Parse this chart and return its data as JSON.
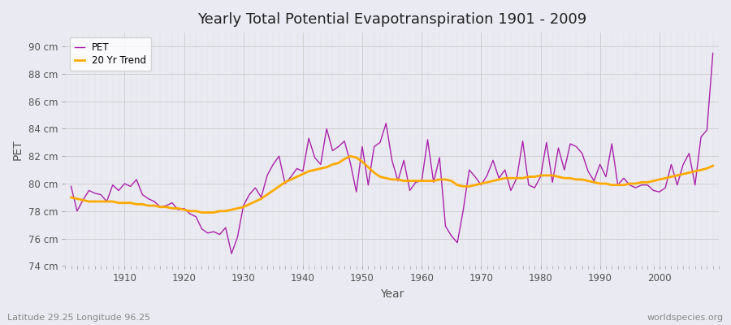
{
  "title": "Yearly Total Potential Evapotranspiration 1901 - 2009",
  "xlabel": "Year",
  "ylabel": "PET",
  "subtitle_left": "Latitude 29.25 Longitude 96.25",
  "subtitle_right": "worldspecies.org",
  "pet_color": "#aa22aa",
  "trend_color": "#ffaa00",
  "background_color": "#eaeaf2",
  "plot_bg_color": "#eaeaf2",
  "ylim": [
    74,
    91
  ],
  "yticks": [
    74,
    76,
    78,
    80,
    82,
    84,
    86,
    88,
    90
  ],
  "ytick_labels": [
    "74 cm",
    "76 cm",
    "78 cm",
    "80 cm",
    "82 cm",
    "84 cm",
    "86 cm",
    "88 cm",
    "90 cm"
  ],
  "years": [
    1901,
    1902,
    1903,
    1904,
    1905,
    1906,
    1907,
    1908,
    1909,
    1910,
    1911,
    1912,
    1913,
    1914,
    1915,
    1916,
    1917,
    1918,
    1919,
    1920,
    1921,
    1922,
    1923,
    1924,
    1925,
    1926,
    1927,
    1928,
    1929,
    1930,
    1931,
    1932,
    1933,
    1934,
    1935,
    1936,
    1937,
    1938,
    1939,
    1940,
    1941,
    1942,
    1943,
    1944,
    1945,
    1946,
    1947,
    1948,
    1949,
    1950,
    1951,
    1952,
    1953,
    1954,
    1955,
    1956,
    1957,
    1958,
    1959,
    1960,
    1961,
    1962,
    1963,
    1964,
    1965,
    1966,
    1967,
    1968,
    1969,
    1970,
    1971,
    1972,
    1973,
    1974,
    1975,
    1976,
    1977,
    1978,
    1979,
    1980,
    1981,
    1982,
    1983,
    1984,
    1985,
    1986,
    1987,
    1988,
    1989,
    1990,
    1991,
    1992,
    1993,
    1994,
    1995,
    1996,
    1997,
    1998,
    1999,
    2000,
    2001,
    2002,
    2003,
    2004,
    2005,
    2006,
    2007,
    2008,
    2009
  ],
  "pet_values": [
    79.8,
    78.0,
    78.8,
    79.5,
    79.3,
    79.2,
    78.7,
    79.9,
    79.5,
    80.0,
    79.8,
    80.3,
    79.2,
    78.9,
    78.7,
    78.3,
    78.4,
    78.6,
    78.1,
    78.2,
    77.8,
    77.6,
    76.7,
    76.4,
    76.5,
    76.3,
    76.8,
    74.9,
    76.1,
    78.4,
    79.2,
    79.7,
    79.0,
    80.6,
    81.4,
    82.0,
    80.0,
    80.5,
    81.1,
    80.9,
    83.3,
    81.9,
    81.4,
    84.0,
    82.4,
    82.7,
    83.1,
    81.5,
    79.4,
    82.7,
    79.9,
    82.7,
    83.0,
    84.4,
    81.7,
    80.2,
    81.7,
    79.5,
    80.1,
    80.2,
    83.2,
    80.1,
    81.9,
    76.9,
    76.2,
    75.7,
    78.1,
    81.0,
    80.5,
    79.9,
    80.6,
    81.7,
    80.4,
    81.0,
    79.5,
    80.4,
    83.1,
    79.9,
    79.7,
    80.5,
    83.0,
    80.1,
    82.6,
    81.0,
    82.9,
    82.7,
    82.2,
    80.9,
    80.2,
    81.4,
    80.5,
    82.9,
    79.9,
    80.4,
    79.9,
    79.7,
    79.9,
    79.9,
    79.5,
    79.4,
    79.7,
    81.4,
    79.9,
    81.4,
    82.2,
    79.9,
    83.4,
    83.9,
    89.5
  ],
  "trend_values": [
    79.0,
    78.9,
    78.8,
    78.7,
    78.7,
    78.7,
    78.7,
    78.7,
    78.6,
    78.6,
    78.6,
    78.5,
    78.5,
    78.4,
    78.4,
    78.3,
    78.3,
    78.2,
    78.2,
    78.1,
    78.0,
    78.0,
    77.9,
    77.9,
    77.9,
    78.0,
    78.0,
    78.1,
    78.2,
    78.3,
    78.5,
    78.7,
    78.9,
    79.2,
    79.5,
    79.8,
    80.1,
    80.3,
    80.5,
    80.7,
    80.9,
    81.0,
    81.1,
    81.2,
    81.4,
    81.5,
    81.8,
    82.0,
    81.9,
    81.6,
    81.2,
    80.8,
    80.5,
    80.4,
    80.3,
    80.3,
    80.2,
    80.2,
    80.2,
    80.2,
    80.2,
    80.2,
    80.3,
    80.3,
    80.2,
    79.9,
    79.8,
    79.8,
    79.9,
    80.0,
    80.1,
    80.2,
    80.3,
    80.4,
    80.4,
    80.4,
    80.4,
    80.5,
    80.5,
    80.6,
    80.6,
    80.6,
    80.5,
    80.4,
    80.4,
    80.3,
    80.3,
    80.2,
    80.1,
    80.0,
    80.0,
    79.9,
    79.9,
    79.9,
    80.0,
    80.0,
    80.1,
    80.1,
    80.2,
    80.3,
    80.4,
    80.5,
    80.6,
    80.7,
    80.8,
    80.9,
    81.0,
    81.1,
    81.3
  ]
}
